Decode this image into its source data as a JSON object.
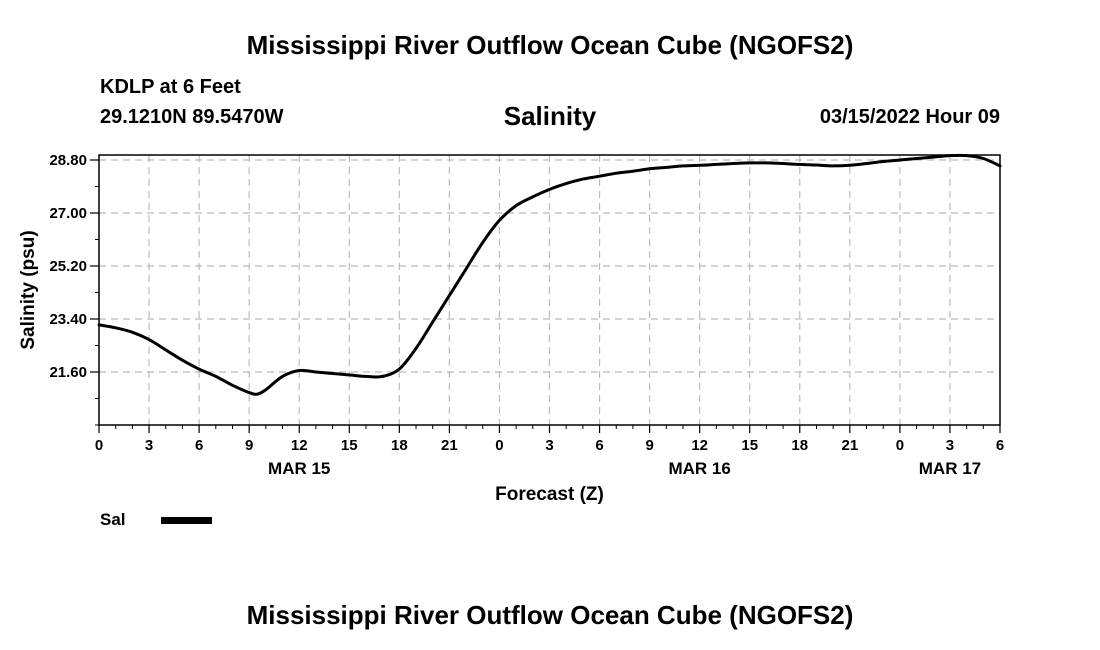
{
  "header": {
    "title": "Mississippi River Outflow Ocean Cube (NGOFS2)",
    "station": "KDLP at 6 Feet",
    "coordinates": "29.1210N  89.5470W",
    "variable": "Salinity",
    "timestamp": "03/15/2022 Hour 09"
  },
  "footer": {
    "title": "Mississippi River Outflow Ocean Cube (NGOFS2)"
  },
  "legend": {
    "label": "Sal"
  },
  "chart_data": {
    "type": "line",
    "title": "Salinity",
    "xlabel": "Forecast (Z)",
    "ylabel": "Salinity (psu)",
    "xlim": [
      0,
      54
    ],
    "ylim": [
      19.8,
      28.8
    ],
    "grid": true,
    "x_ticks": [
      {
        "x": 0,
        "label": "0"
      },
      {
        "x": 3,
        "label": "3"
      },
      {
        "x": 6,
        "label": "6"
      },
      {
        "x": 9,
        "label": "9"
      },
      {
        "x": 12,
        "label": "12"
      },
      {
        "x": 15,
        "label": "15"
      },
      {
        "x": 18,
        "label": "18"
      },
      {
        "x": 21,
        "label": "21"
      },
      {
        "x": 24,
        "label": "0"
      },
      {
        "x": 27,
        "label": "3"
      },
      {
        "x": 30,
        "label": "6"
      },
      {
        "x": 33,
        "label": "9"
      },
      {
        "x": 36,
        "label": "12"
      },
      {
        "x": 39,
        "label": "15"
      },
      {
        "x": 42,
        "label": "18"
      },
      {
        "x": 45,
        "label": "21"
      },
      {
        "x": 48,
        "label": "0"
      },
      {
        "x": 51,
        "label": "3"
      },
      {
        "x": 54,
        "label": "6"
      }
    ],
    "date_labels": [
      {
        "x": 12,
        "label": "MAR 15"
      },
      {
        "x": 36,
        "label": "MAR 16"
      },
      {
        "x": 51,
        "label": "MAR 17"
      }
    ],
    "y_ticks": [
      {
        "y": 21.6,
        "label": "21.60"
      },
      {
        "y": 23.4,
        "label": "23.40"
      },
      {
        "y": 25.2,
        "label": "25.20"
      },
      {
        "y": 27.0,
        "label": "27.00"
      },
      {
        "y": 28.8,
        "label": "28.80"
      }
    ],
    "series": [
      {
        "name": "Sal",
        "x": [
          0,
          1,
          2,
          3,
          4,
          5,
          6,
          7,
          8,
          9,
          9.5,
          10,
          11,
          12,
          13,
          14,
          15,
          16,
          17,
          18,
          19,
          20,
          21,
          22,
          23,
          24,
          25,
          26,
          27,
          28,
          29,
          30,
          31,
          32,
          33,
          34,
          35,
          36,
          37,
          38,
          39,
          40,
          41,
          42,
          43,
          44,
          45,
          46,
          47,
          48,
          49,
          50,
          51,
          52,
          53,
          54
        ],
        "values": [
          23.2,
          23.1,
          22.95,
          22.7,
          22.35,
          22.0,
          21.7,
          21.45,
          21.15,
          20.9,
          20.85,
          21.0,
          21.45,
          21.65,
          21.6,
          21.55,
          21.5,
          21.45,
          21.45,
          21.7,
          22.4,
          23.3,
          24.2,
          25.1,
          26.0,
          26.75,
          27.25,
          27.55,
          27.8,
          28.0,
          28.15,
          28.25,
          28.35,
          28.42,
          28.5,
          28.55,
          28.6,
          28.62,
          28.65,
          28.68,
          28.7,
          28.7,
          28.68,
          28.65,
          28.63,
          28.6,
          28.62,
          28.68,
          28.75,
          28.8,
          28.85,
          28.9,
          28.95,
          28.95,
          28.85,
          28.6
        ]
      }
    ]
  }
}
